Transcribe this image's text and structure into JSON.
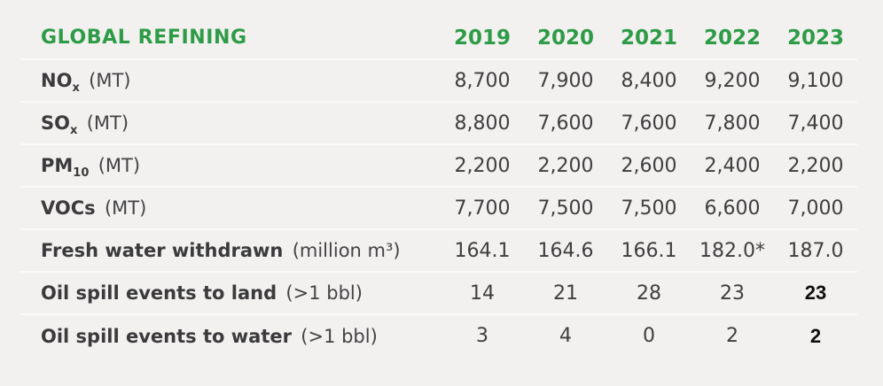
{
  "colors": {
    "accent_green": "#2E9B47",
    "panel_background": "#F2F1EF",
    "body_text": "#3F3E40",
    "row_divider": "#FAFAF9",
    "emphasis_text": "#0E0E0E"
  },
  "table": {
    "title": "GLOBAL REFINING",
    "years": [
      "2019",
      "2020",
      "2021",
      "2022",
      "2023"
    ],
    "rows": [
      {
        "label": "NO",
        "label_sub": "x",
        "unit": "(MT)",
        "values": [
          "8,700",
          "7,900",
          "8,400",
          "9,200",
          "9,100"
        ]
      },
      {
        "label": "SO",
        "label_sub": "x",
        "unit": "(MT)",
        "values": [
          "8,800",
          "7,600",
          "7,600",
          "7,800",
          "7,400"
        ]
      },
      {
        "label": "PM",
        "label_sub": "10",
        "unit": "(MT)",
        "values": [
          "2,200",
          "2,200",
          "2,600",
          "2,400",
          "2,200"
        ]
      },
      {
        "label": "VOCs",
        "label_sub": "",
        "unit": "(MT)",
        "values": [
          "7,700",
          "7,500",
          "7,500",
          "6,600",
          "7,000"
        ]
      },
      {
        "label": "Fresh water withdrawn",
        "label_sub": "",
        "unit": "(million m³)",
        "values": [
          "164.1",
          "164.6",
          "166.1",
          "182.0*",
          "187.0"
        ]
      },
      {
        "label": "Oil spill events to land",
        "label_sub": "",
        "unit": "(>1 bbl)",
        "values": [
          "14",
          "21",
          "28",
          "23",
          "23"
        ]
      },
      {
        "label": "Oil spill events to water",
        "label_sub": "",
        "unit": "(>1 bbl)",
        "values": [
          "3",
          "4",
          "0",
          "2",
          "2"
        ]
      }
    ]
  },
  "chart_data": {
    "type": "table",
    "title": "GLOBAL REFINING",
    "categories": [
      "2019",
      "2020",
      "2021",
      "2022",
      "2023"
    ],
    "series": [
      {
        "name": "NOx (MT)",
        "values": [
          8700,
          7900,
          8400,
          9200,
          9100
        ]
      },
      {
        "name": "SOx (MT)",
        "values": [
          8800,
          7600,
          7600,
          7800,
          7400
        ]
      },
      {
        "name": "PM10 (MT)",
        "values": [
          2200,
          2200,
          2600,
          2400,
          2200
        ]
      },
      {
        "name": "VOCs (MT)",
        "values": [
          7700,
          7500,
          7500,
          6600,
          7000
        ]
      },
      {
        "name": "Fresh water withdrawn (million m3)",
        "values": [
          164.1,
          164.6,
          166.1,
          182.0,
          187.0
        ]
      },
      {
        "name": "Oil spill events to land (>1 bbl)",
        "values": [
          14,
          21,
          28,
          23,
          23
        ]
      },
      {
        "name": "Oil spill events to water (>1 bbl)",
        "values": [
          3,
          4,
          0,
          2,
          2
        ]
      }
    ],
    "annotations": [
      "182.0* carries an asterisk footnote marker in the 2022 column"
    ]
  }
}
